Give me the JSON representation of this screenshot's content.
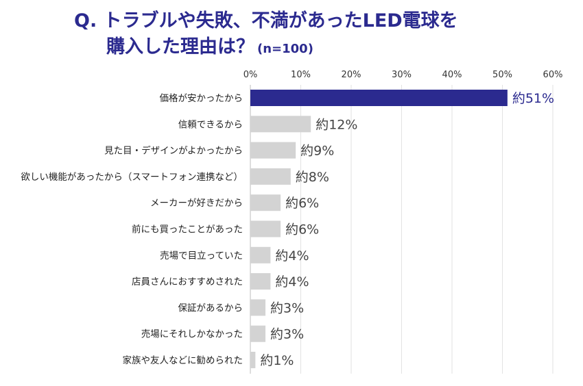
{
  "title": {
    "line1": "Q. トラブルや失敗、不満があったLED電球を",
    "line2": "購入した理由は？",
    "n": "(n=100)"
  },
  "colors": {
    "highlight": "#2b2a8f",
    "bar": "#d3d3d3",
    "grid": "#e2e2e2"
  },
  "chart_data": {
    "type": "bar",
    "orientation": "horizontal",
    "categories": [
      "価格が安かったから",
      "信頼できるから",
      "見た目・デザインがよかったから",
      "欲しい機能があったから（スマートフォン連携など）",
      "メーカーが好きだから",
      "前にも買ったことがあった",
      "売場で目立っていた",
      "店員さんにおすすめされた",
      "保証があるから",
      "売場にそれしかなかった",
      "家族や友人などに勧められた"
    ],
    "values": [
      51,
      12,
      9,
      8,
      6,
      6,
      4,
      4,
      3,
      3,
      1
    ],
    "value_labels": [
      "約51%",
      "約12%",
      "約9%",
      "約8%",
      "約6%",
      "約6%",
      "約4%",
      "約4%",
      "約3%",
      "約3%",
      "約1%"
    ],
    "xticks": [
      "0%",
      "10%",
      "20%",
      "30%",
      "40%",
      "50%",
      "60%"
    ],
    "xlim": [
      0,
      60
    ],
    "grid": true,
    "highlight_index": 0
  }
}
